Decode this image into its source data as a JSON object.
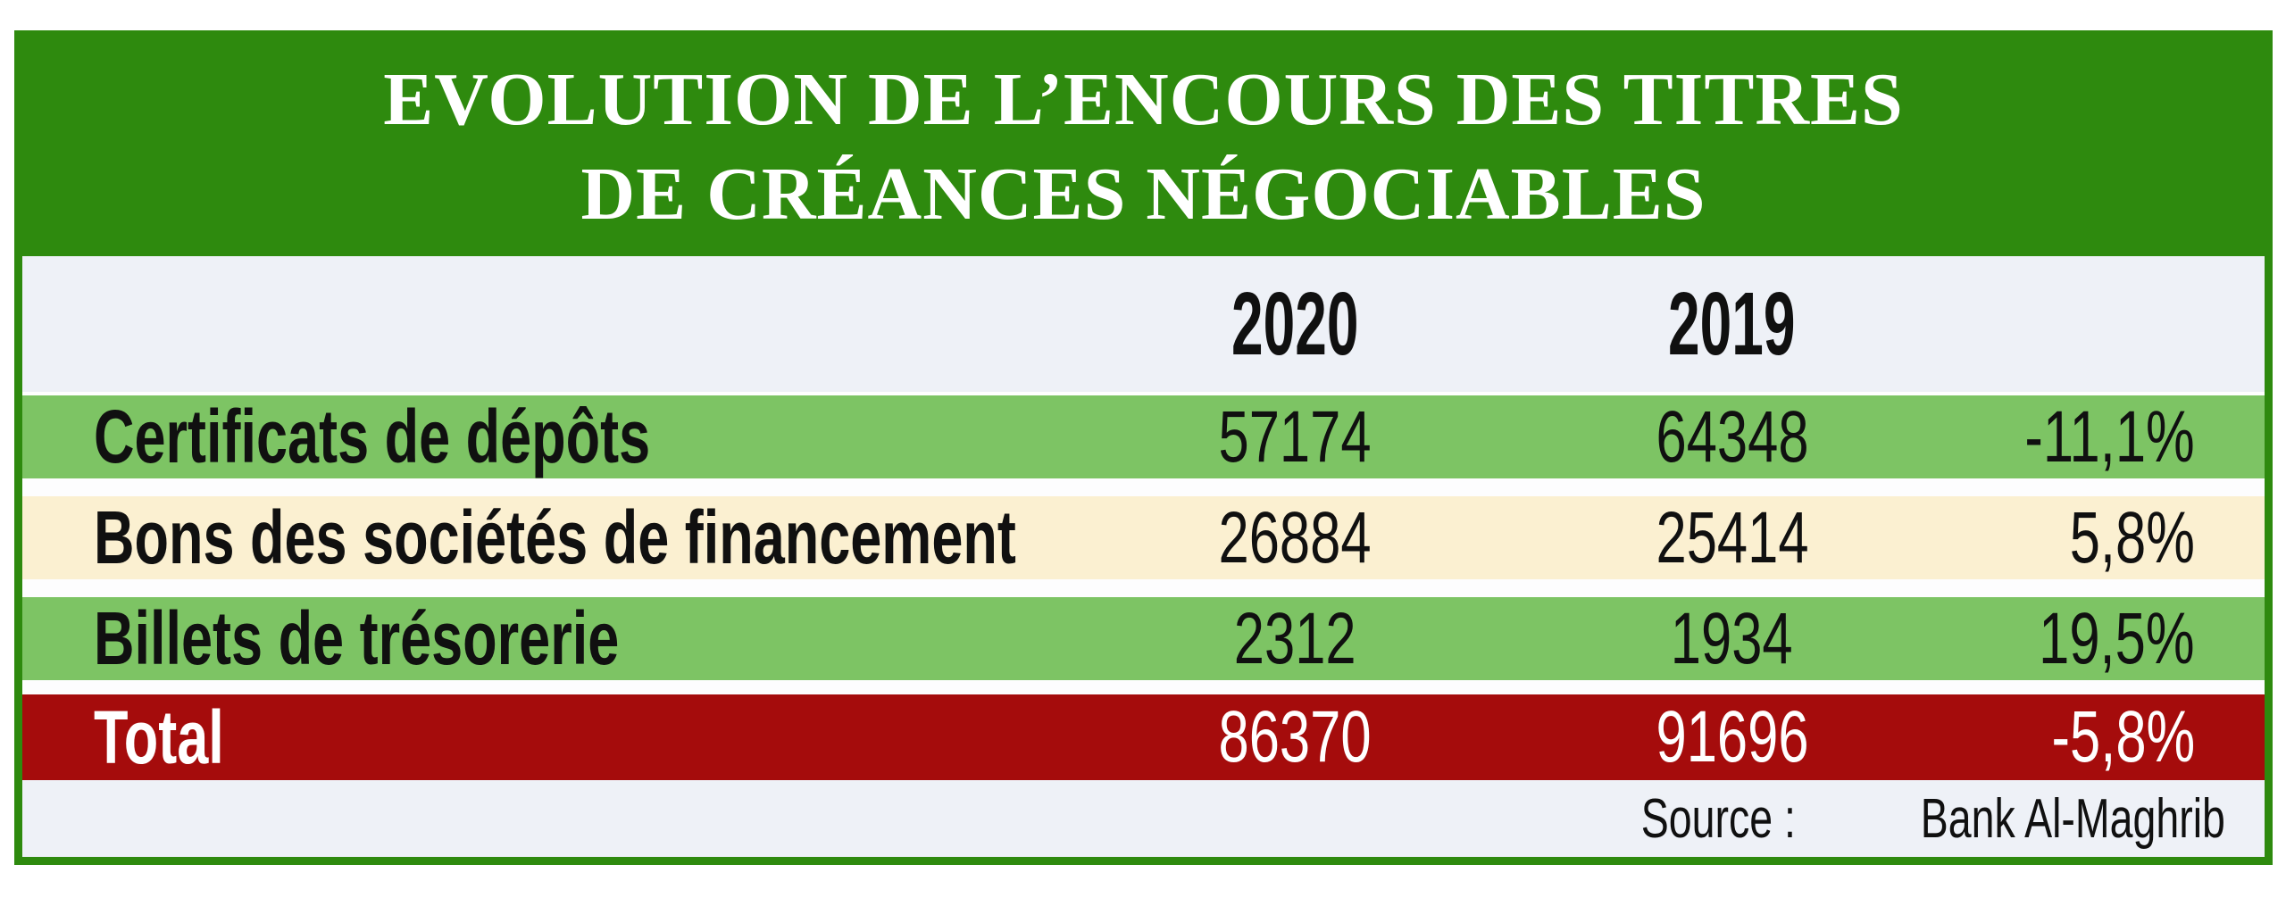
{
  "title": {
    "line1": "EVOLUTION DE L’ENCOURS DES TITRES",
    "line2": "DE CRÉANCES NÉGOCIABLES"
  },
  "header": {
    "year_2020": "2020",
    "year_2019": "2019"
  },
  "rows": [
    {
      "label": "Certificats de dépôts",
      "value_2020": "57174",
      "value_2019": "64348",
      "variation": "-11,1%"
    },
    {
      "label": "Bons des sociétés de financement",
      "value_2020": "26884",
      "value_2019": "25414",
      "variation": "5,8%"
    },
    {
      "label": "Billets de trésorerie",
      "value_2020": "2312",
      "value_2019": "1934",
      "variation": "19,5%"
    }
  ],
  "total": {
    "label": "Total",
    "value_2020": "86370",
    "value_2019": "91696",
    "variation": "-5,8%"
  },
  "source": {
    "label": "Source :",
    "value": "Bank Al-Maghrib"
  },
  "colors": {
    "title_green": "#2E8A0E",
    "border_green": "#2E8A0E",
    "row_green": "#7DC464",
    "row_cream": "#FBF0D1",
    "total_red": "#A50C0C",
    "band_gray": "#EEF1F7",
    "title_text": "#FFFFFF",
    "body_text": "#101010"
  },
  "chart_data": {
    "type": "table",
    "title": "EVOLUTION DE L’ENCOURS DES TITRES DE CRÉANCES NÉGOCIABLES",
    "columns": [
      "",
      "2020",
      "2019",
      ""
    ],
    "rows": [
      [
        "Certificats de dépôts",
        57174,
        64348,
        "-11,1%"
      ],
      [
        "Bons des sociétés de financement",
        26884,
        25414,
        "5,8%"
      ],
      [
        "Billets de trésorerie",
        2312,
        1934,
        "19,5%"
      ],
      [
        "Total",
        86370,
        91696,
        "-5,8%"
      ]
    ],
    "source": "Source : Bank Al-Maghrib"
  }
}
